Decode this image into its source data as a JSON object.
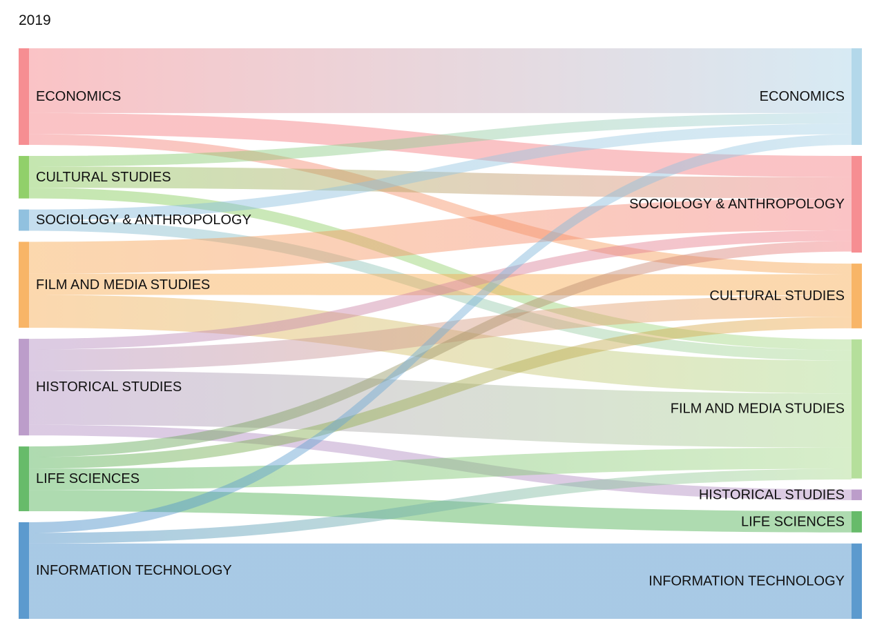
{
  "chart_data": {
    "type": "sankey",
    "title": "2019",
    "units": "relative flow (Economics, left column = 100)",
    "source_nodes": [
      {
        "id": "s_econ",
        "label": "ECONOMICS",
        "color": "#f47a7f",
        "value": 100
      },
      {
        "id": "s_cult",
        "label": "CULTURAL STUDIES",
        "color": "#7ec850",
        "value": 44
      },
      {
        "id": "s_soc",
        "label": "SOCIOLOGY & ANTHROPOLOGY",
        "color": "#7eb6d9",
        "value": 22
      },
      {
        "id": "s_film",
        "label": "FILM AND MEDIA STUDIES",
        "color": "#f7a84c",
        "value": 89
      },
      {
        "id": "s_hist",
        "label": "HISTORICAL STUDIES",
        "color": "#b08cc1",
        "value": 100
      },
      {
        "id": "s_life",
        "label": "LIFE SCIENCES",
        "color": "#4caf50",
        "value": 67
      },
      {
        "id": "s_it",
        "label": "INFORMATION TECHNOLOGY",
        "color": "#3f88c5",
        "value": 100
      }
    ],
    "target_nodes": [
      {
        "id": "t_econ",
        "label": "ECONOMICS",
        "color": "#a6d1e6",
        "value": 100
      },
      {
        "id": "t_soc",
        "label": "SOCIOLOGY & ANTHROPOLOGY",
        "color": "#f47a7f",
        "value": 100
      },
      {
        "id": "t_cult",
        "label": "CULTURAL STUDIES",
        "color": "#f7a84c",
        "value": 67
      },
      {
        "id": "t_film",
        "label": "FILM AND MEDIA STUDIES",
        "color": "#a8d98a",
        "value": 144
      },
      {
        "id": "t_hist",
        "label": "HISTORICAL STUDIES",
        "color": "#b08cc1",
        "value": 11
      },
      {
        "id": "t_life",
        "label": "LIFE SCIENCES",
        "color": "#4caf50",
        "value": 22
      },
      {
        "id": "t_it",
        "label": "INFORMATION TECHNOLOGY",
        "color": "#3f88c5",
        "value": 78
      }
    ],
    "flows": [
      {
        "source": "s_econ",
        "target": "t_econ",
        "value": 67
      },
      {
        "source": "s_econ",
        "target": "t_soc",
        "value": 22
      },
      {
        "source": "s_econ",
        "target": "t_cult",
        "value": 11
      },
      {
        "source": "s_cult",
        "target": "t_econ",
        "value": 11
      },
      {
        "source": "s_cult",
        "target": "t_soc",
        "value": 22
      },
      {
        "source": "s_cult",
        "target": "t_film",
        "value": 11
      },
      {
        "source": "s_soc",
        "target": "t_econ",
        "value": 11
      },
      {
        "source": "s_soc",
        "target": "t_film",
        "value": 11
      },
      {
        "source": "s_film",
        "target": "t_soc",
        "value": 33
      },
      {
        "source": "s_film",
        "target": "t_cult",
        "value": 22
      },
      {
        "source": "s_film",
        "target": "t_film",
        "value": 34
      },
      {
        "source": "s_hist",
        "target": "t_soc",
        "value": 11
      },
      {
        "source": "s_hist",
        "target": "t_cult",
        "value": 22
      },
      {
        "source": "s_hist",
        "target": "t_film",
        "value": 56
      },
      {
        "source": "s_hist",
        "target": "t_hist",
        "value": 11
      },
      {
        "source": "s_life",
        "target": "t_soc",
        "value": 11
      },
      {
        "source": "s_life",
        "target": "t_cult",
        "value": 12
      },
      {
        "source": "s_life",
        "target": "t_film",
        "value": 22
      },
      {
        "source": "s_life",
        "target": "t_life",
        "value": 22
      },
      {
        "source": "s_it",
        "target": "t_econ",
        "value": 11
      },
      {
        "source": "s_it",
        "target": "t_film",
        "value": 11
      },
      {
        "source": "s_it",
        "target": "t_it",
        "value": 78
      }
    ]
  }
}
